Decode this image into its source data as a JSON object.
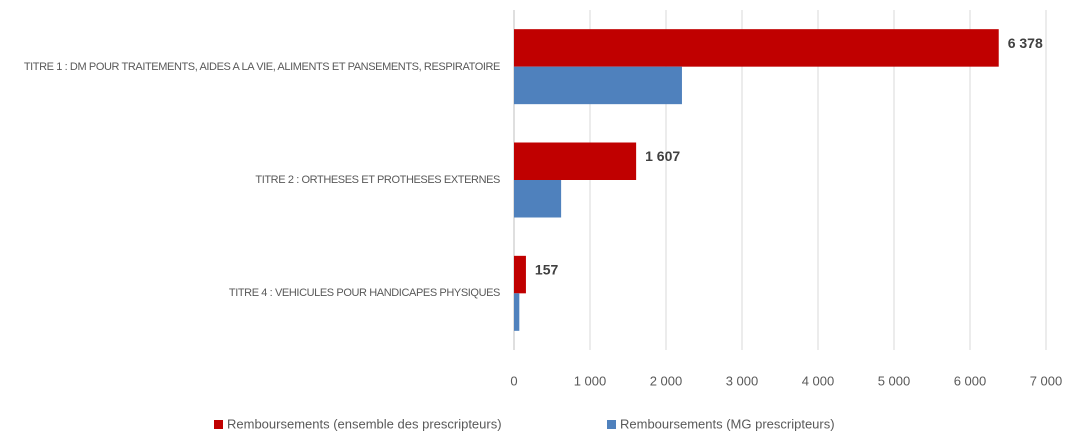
{
  "chart_data": {
    "type": "hbar",
    "categories": [
      "TITRE 1 : DM POUR TRAITEMENTS, AIDES A LA VIE, ALIMENTS ET PANSEMENTS, RESPIRATOIRE",
      "TITRE 2 : ORTHESES ET PROTHESES EXTERNES",
      "TITRE 4 : VEHICULES POUR HANDICAPES PHYSIQUES"
    ],
    "series": [
      {
        "name": "Remboursements (ensemble des prescripteurs)",
        "color": "#c00000",
        "values": [
          6378,
          1607,
          157
        ],
        "value_labels": [
          "6 378",
          "1 607",
          "157"
        ]
      },
      {
        "name": "Remboursements (MG prescripteurs)",
        "color": "#4f81bd",
        "values": [
          2210,
          620,
          70
        ]
      }
    ],
    "xlim": [
      0,
      7000
    ],
    "xticks": [
      0,
      {
        "value": 1000,
        "label": "1 000"
      },
      {
        "value": 2000,
        "label": "2 000"
      },
      {
        "value": 3000,
        "label": "3 000"
      },
      {
        "value": 4000,
        "label": "4 000"
      },
      {
        "value": 5000,
        "label": "5 000"
      },
      {
        "value": 6000,
        "label": "6 000"
      },
      {
        "value": 7000,
        "label": "7 000"
      }
    ],
    "grid": true,
    "legend": "bottom"
  }
}
